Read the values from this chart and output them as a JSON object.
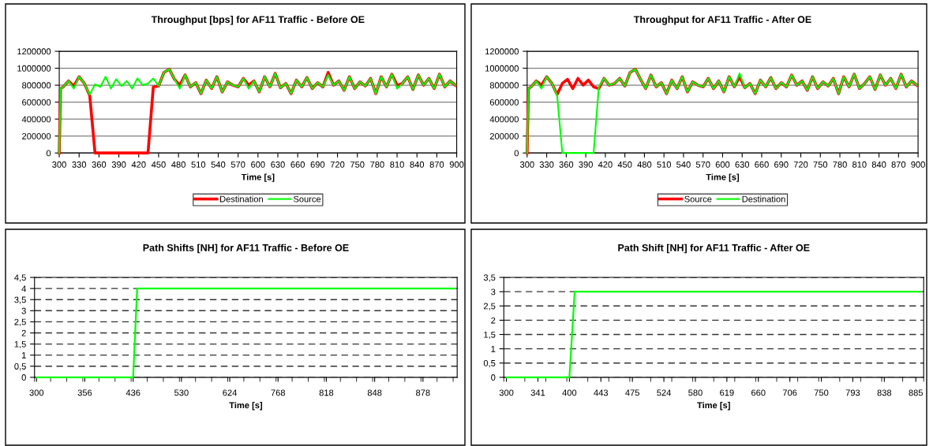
{
  "chart_data": [
    {
      "type": "line",
      "title": "Throughput [bps] for AF11 Traffic - Before OE",
      "xlabel": "Time [s]",
      "x": [
        300,
        302,
        306,
        314,
        322,
        330,
        338,
        346,
        354,
        362,
        370,
        378,
        386,
        394,
        402,
        410,
        418,
        426,
        434,
        442,
        450,
        458,
        466,
        474,
        482,
        490,
        498,
        506,
        514,
        522,
        530,
        538,
        546,
        554,
        562,
        570,
        578,
        586,
        594,
        602,
        610,
        618,
        626,
        634,
        642,
        650,
        658,
        666,
        674,
        682,
        690,
        698,
        706,
        714,
        722,
        730,
        738,
        746,
        754,
        762,
        770,
        778,
        786,
        794,
        802,
        810,
        818,
        826,
        834,
        842,
        850,
        858,
        866,
        874,
        882,
        890,
        898
      ],
      "series": [
        {
          "name": "Destination",
          "color": "#ff0000",
          "values": [
            0,
            760000,
            780000,
            850000,
            790000,
            900000,
            820000,
            680000,
            0,
            0,
            0,
            0,
            0,
            0,
            0,
            0,
            0,
            0,
            0,
            780000,
            790000,
            950000,
            990000,
            870000,
            800000,
            920000,
            780000,
            830000,
            700000,
            860000,
            760000,
            900000,
            720000,
            840000,
            800000,
            780000,
            880000,
            800000,
            850000,
            720000,
            900000,
            780000,
            940000,
            770000,
            820000,
            700000,
            860000,
            780000,
            890000,
            760000,
            830000,
            780000,
            950000,
            800000,
            850000,
            740000,
            900000,
            760000,
            840000,
            790000,
            880000,
            700000,
            900000,
            780000,
            930000,
            800000,
            820000,
            900000,
            750000,
            920000,
            800000,
            880000,
            760000,
            930000,
            780000,
            850000,
            800000
          ]
        },
        {
          "name": "Source",
          "color": "#00ff00",
          "values": [
            0,
            760000,
            780000,
            850000,
            760000,
            900000,
            820000,
            690000,
            810000,
            780000,
            900000,
            760000,
            870000,
            790000,
            850000,
            760000,
            880000,
            800000,
            820000,
            880000,
            790000,
            950000,
            990000,
            870000,
            760000,
            920000,
            780000,
            830000,
            700000,
            860000,
            760000,
            900000,
            720000,
            840000,
            800000,
            780000,
            880000,
            760000,
            850000,
            720000,
            900000,
            780000,
            940000,
            770000,
            820000,
            700000,
            860000,
            780000,
            890000,
            760000,
            830000,
            780000,
            920000,
            800000,
            850000,
            740000,
            900000,
            760000,
            840000,
            790000,
            880000,
            700000,
            900000,
            780000,
            930000,
            760000,
            820000,
            900000,
            750000,
            920000,
            800000,
            880000,
            760000,
            930000,
            780000,
            850000,
            800000
          ]
        }
      ],
      "xlim": [
        300,
        900
      ],
      "xticks": [
        300,
        330,
        360,
        390,
        420,
        450,
        480,
        510,
        540,
        570,
        600,
        630,
        660,
        690,
        720,
        750,
        780,
        810,
        840,
        870,
        900
      ],
      "ylim": [
        0,
        1200000
      ],
      "yticks": [
        0,
        200000,
        400000,
        600000,
        800000,
        1000000,
        1200000
      ],
      "grid": "y",
      "legend": "bottom"
    },
    {
      "type": "line",
      "title": "Throughput for AF11 Traffic - After OE",
      "xlabel": "Time [s]",
      "x": [
        300,
        302,
        306,
        314,
        322,
        330,
        338,
        346,
        354,
        362,
        370,
        378,
        386,
        394,
        402,
        410,
        418,
        426,
        434,
        442,
        450,
        458,
        466,
        474,
        482,
        490,
        498,
        506,
        514,
        522,
        530,
        538,
        546,
        554,
        562,
        570,
        578,
        586,
        594,
        602,
        610,
        618,
        626,
        634,
        642,
        650,
        658,
        666,
        674,
        682,
        690,
        698,
        706,
        714,
        722,
        730,
        738,
        746,
        754,
        762,
        770,
        778,
        786,
        794,
        802,
        810,
        818,
        826,
        834,
        842,
        850,
        858,
        866,
        874,
        882,
        890,
        898
      ],
      "series": [
        {
          "name": "Source",
          "color": "#ff0000",
          "values": [
            0,
            760000,
            780000,
            850000,
            800000,
            900000,
            820000,
            690000,
            820000,
            870000,
            760000,
            880000,
            800000,
            860000,
            780000,
            760000,
            880000,
            800000,
            820000,
            880000,
            790000,
            950000,
            990000,
            870000,
            760000,
            920000,
            780000,
            830000,
            700000,
            860000,
            760000,
            900000,
            720000,
            840000,
            800000,
            780000,
            880000,
            760000,
            850000,
            720000,
            900000,
            780000,
            900000,
            770000,
            820000,
            700000,
            860000,
            780000,
            890000,
            760000,
            830000,
            780000,
            920000,
            800000,
            850000,
            740000,
            900000,
            760000,
            840000,
            790000,
            880000,
            700000,
            900000,
            780000,
            930000,
            760000,
            820000,
            900000,
            750000,
            920000,
            800000,
            880000,
            760000,
            930000,
            780000,
            850000,
            800000
          ]
        },
        {
          "name": "Destination",
          "color": "#00ff00",
          "values": [
            0,
            760000,
            780000,
            850000,
            760000,
            900000,
            820000,
            680000,
            0,
            0,
            0,
            0,
            0,
            0,
            0,
            780000,
            880000,
            800000,
            820000,
            880000,
            790000,
            950000,
            990000,
            870000,
            760000,
            920000,
            780000,
            830000,
            700000,
            860000,
            760000,
            900000,
            720000,
            840000,
            800000,
            780000,
            880000,
            760000,
            850000,
            720000,
            900000,
            780000,
            940000,
            770000,
            820000,
            700000,
            860000,
            780000,
            890000,
            760000,
            830000,
            780000,
            920000,
            800000,
            850000,
            740000,
            900000,
            760000,
            840000,
            790000,
            880000,
            700000,
            900000,
            780000,
            930000,
            760000,
            820000,
            900000,
            750000,
            920000,
            800000,
            880000,
            760000,
            930000,
            780000,
            850000,
            800000
          ]
        }
      ],
      "xlim": [
        300,
        900
      ],
      "xticks": [
        300,
        330,
        360,
        390,
        420,
        450,
        480,
        510,
        540,
        570,
        600,
        630,
        660,
        690,
        720,
        750,
        780,
        810,
        840,
        870,
        900
      ],
      "ylim": [
        0,
        1200000
      ],
      "yticks": [
        0,
        200000,
        400000,
        600000,
        800000,
        1000000,
        1200000
      ],
      "grid": "y",
      "legend": "bottom"
    },
    {
      "type": "line",
      "title": "Path Shifts [NH] for AF11 Traffic - Before OE",
      "xlabel": "Time [s]",
      "categories": [
        "300",
        null,
        null,
        null,
        null,
        null,
        null,
        null,
        null,
        null,
        null,
        null,
        "356",
        null,
        null,
        null,
        null,
        null,
        null,
        null,
        null,
        null,
        null,
        null,
        "436",
        null,
        null,
        null,
        null,
        null,
        null,
        null,
        null,
        null,
        null,
        null,
        "530",
        null,
        null,
        null,
        null,
        null,
        null,
        null,
        null,
        null,
        null,
        null,
        "624",
        null,
        null,
        null,
        null,
        null,
        null,
        null,
        null,
        null,
        null,
        null,
        "768",
        null,
        null,
        null,
        null,
        null,
        null,
        null,
        null,
        null,
        null,
        null,
        "818",
        null,
        null,
        null,
        null,
        null,
        null,
        null,
        null,
        null,
        null,
        null,
        "848",
        null,
        null,
        null,
        null,
        null,
        null,
        null,
        null,
        null,
        null,
        null,
        "878",
        null,
        null,
        null,
        null,
        null,
        null,
        null,
        null
      ],
      "series": [
        {
          "color": "#00ff00",
          "values": [
            0,
            0,
            0,
            0,
            0,
            0,
            0,
            0,
            0,
            0,
            0,
            0,
            0,
            0,
            0,
            0,
            0,
            0,
            0,
            0,
            0,
            0,
            0,
            0,
            0,
            4,
            4,
            4,
            4,
            4,
            4,
            4,
            4,
            4,
            4,
            4,
            4,
            4,
            4,
            4,
            4,
            4,
            4,
            4,
            4,
            4,
            4,
            4,
            4,
            4,
            4,
            4,
            4,
            4,
            4,
            4,
            4,
            4,
            4,
            4,
            4,
            4,
            4,
            4,
            4,
            4,
            4,
            4,
            4,
            4,
            4,
            4,
            4,
            4,
            4,
            4,
            4,
            4,
            4,
            4,
            4,
            4,
            4,
            4,
            4,
            4,
            4,
            4,
            4,
            4,
            4,
            4,
            4,
            4,
            4,
            4,
            4,
            4,
            4,
            4,
            4,
            4,
            4,
            4,
            4
          ]
        }
      ],
      "ylim": [
        0,
        4.5
      ],
      "yticks": [
        0,
        {
          "value": 0.5,
          "label": "0,5"
        },
        1,
        {
          "value": 1.5,
          "label": "1,5"
        },
        2,
        {
          "value": 2.5,
          "label": "2,5"
        },
        3,
        {
          "value": 3.5,
          "label": "3,5"
        },
        4,
        {
          "value": 4.5,
          "label": "4,5"
        }
      ],
      "grid": "y"
    },
    {
      "type": "line",
      "title": "Path Shift [NH] for AF11 Traffic - After OE",
      "xlabel": "Time [s]",
      "categories": [
        "300",
        null,
        null,
        null,
        null,
        null,
        "341",
        null,
        null,
        null,
        null,
        null,
        "400",
        null,
        null,
        null,
        null,
        null,
        "443",
        null,
        null,
        null,
        null,
        null,
        "475",
        null,
        null,
        null,
        null,
        null,
        "524",
        null,
        null,
        null,
        null,
        null,
        "580",
        null,
        null,
        null,
        null,
        null,
        "619",
        null,
        null,
        null,
        null,
        null,
        "660",
        null,
        null,
        null,
        null,
        null,
        "706",
        null,
        null,
        null,
        null,
        null,
        "750",
        null,
        null,
        null,
        null,
        null,
        "793",
        null,
        null,
        null,
        null,
        null,
        "838",
        null,
        null,
        null,
        null,
        null,
        "885",
        null
      ],
      "series": [
        {
          "color": "#00ff00",
          "values": [
            0,
            0,
            0,
            0,
            0,
            0,
            0,
            0,
            0,
            0,
            0,
            0,
            0,
            3,
            3,
            3,
            3,
            3,
            3,
            3,
            3,
            3,
            3,
            3,
            3,
            3,
            3,
            3,
            3,
            3,
            3,
            3,
            3,
            3,
            3,
            3,
            3,
            3,
            3,
            3,
            3,
            3,
            3,
            3,
            3,
            3,
            3,
            3,
            3,
            3,
            3,
            3,
            3,
            3,
            3,
            3,
            3,
            3,
            3,
            3,
            3,
            3,
            3,
            3,
            3,
            3,
            3,
            3,
            3,
            3,
            3,
            3,
            3,
            3,
            3,
            3,
            3,
            3,
            3,
            3
          ]
        }
      ],
      "ylim": [
        0,
        3.5
      ],
      "yticks": [
        0,
        {
          "value": 0.5,
          "label": "0,5"
        },
        1,
        {
          "value": 1.5,
          "label": "1,5"
        },
        2,
        {
          "value": 2.5,
          "label": "2,5"
        },
        3,
        {
          "value": 3.5,
          "label": "3,5"
        }
      ],
      "grid": "y"
    }
  ]
}
